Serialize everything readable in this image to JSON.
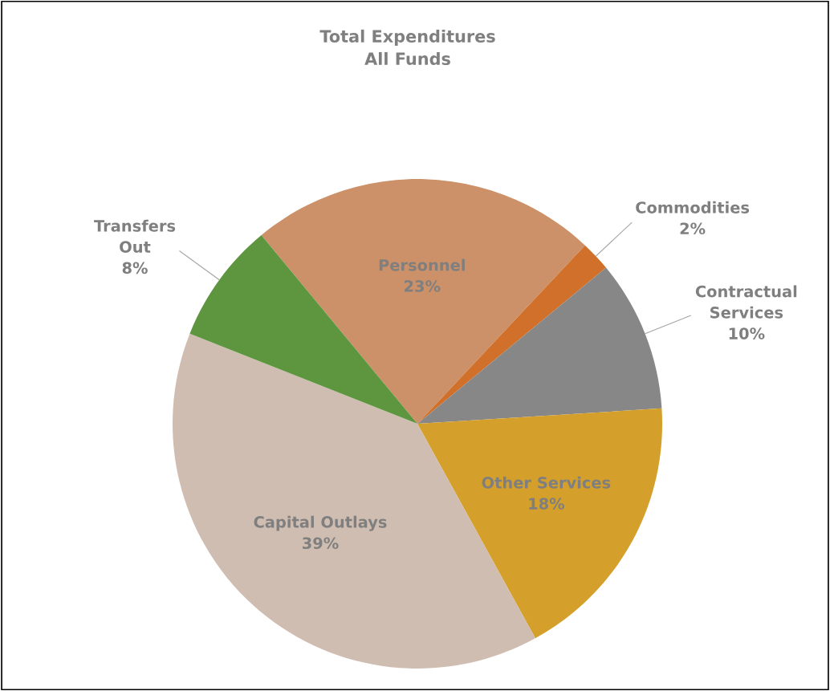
{
  "chart_data": {
    "type": "pie",
    "title": "Total Expenditures\nAll Funds",
    "categories": [
      "Personnel",
      "Commodities",
      "Contractual Services",
      "Other Services",
      "Capital Outlays",
      "Transfers Out"
    ],
    "values": [
      23,
      2,
      10,
      18,
      39,
      8
    ],
    "value_labels": [
      "23%",
      "2%",
      "10%",
      "18%",
      "39%",
      "8%"
    ],
    "colors": [
      "#cc9168",
      "#d0702a",
      "#878787",
      "#d49f2b",
      "#d0bdb1",
      "#5e9640"
    ],
    "legend": false
  }
}
